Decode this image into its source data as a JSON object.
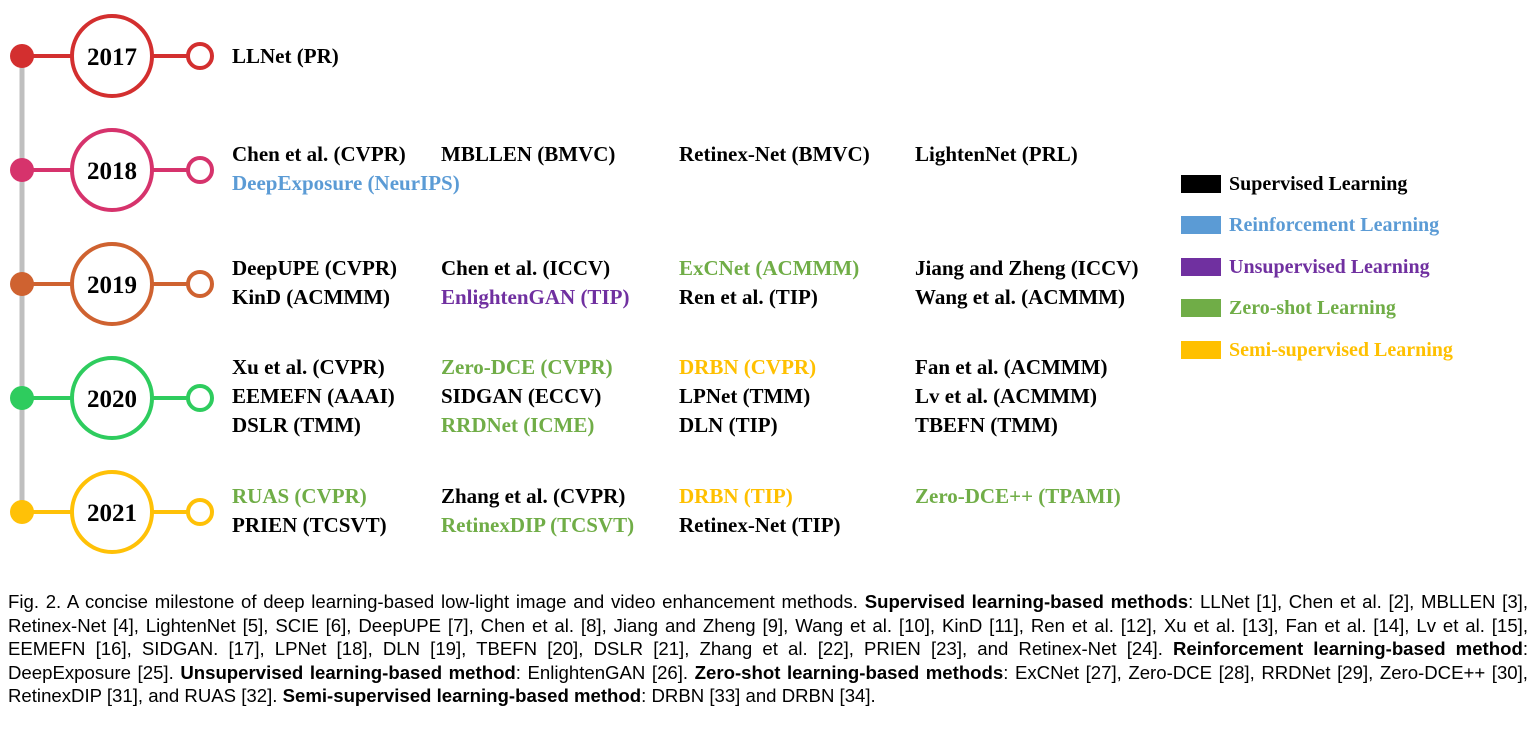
{
  "colors": {
    "supervised": "#000000",
    "reinforcement": "#5b9bd5",
    "unsupervised": "#7030a0",
    "zero_shot": "#70ad47",
    "semi_supervised": "#ffc000",
    "timeline_axis": "#bfbfbf"
  },
  "timeline": [
    {
      "year": "2017",
      "color": "#d32f2f",
      "methods": [
        {
          "text": "LLNet (PR)",
          "category": "supervised"
        }
      ]
    },
    {
      "year": "2018",
      "color": "#d6336c",
      "methods": [
        {
          "text": "Chen et al. (CVPR)",
          "category": "supervised"
        },
        {
          "text": "MBLLEN (BMVC)",
          "category": "supervised"
        },
        {
          "text": "Retinex-Net (BMVC)",
          "category": "supervised"
        },
        {
          "text": "LightenNet (PRL)",
          "category": "supervised"
        },
        {
          "text": "DeepExposure (NeurIPS)",
          "category": "reinforcement"
        }
      ]
    },
    {
      "year": "2019",
      "color": "#cf6230",
      "methods": [
        {
          "text": "DeepUPE (CVPR)",
          "category": "supervised"
        },
        {
          "text": "Chen et al. (ICCV)",
          "category": "supervised"
        },
        {
          "text": "ExCNet (ACMMM)",
          "category": "zero_shot"
        },
        {
          "text": "Jiang and Zheng (ICCV)",
          "category": "supervised"
        },
        {
          "text": "KinD (ACMMM)",
          "category": "supervised"
        },
        {
          "text": "EnlightenGAN (TIP)",
          "category": "unsupervised"
        },
        {
          "text": "Ren et al. (TIP)",
          "category": "supervised"
        },
        {
          "text": "Wang et al. (ACMMM)",
          "category": "supervised"
        }
      ]
    },
    {
      "year": "2020",
      "color": "#2ecc5e",
      "methods": [
        {
          "text": "Xu et al. (CVPR)",
          "category": "supervised"
        },
        {
          "text": "Zero-DCE (CVPR)",
          "category": "zero_shot"
        },
        {
          "text": "DRBN (CVPR)",
          "category": "semi_supervised"
        },
        {
          "text": "Fan et al. (ACMMM)",
          "category": "supervised"
        },
        {
          "text": "EEMEFN (AAAI)",
          "category": "supervised"
        },
        {
          "text": "SIDGAN (ECCV)",
          "category": "supervised"
        },
        {
          "text": "LPNet (TMM)",
          "category": "supervised"
        },
        {
          "text": "Lv et al. (ACMMM)",
          "category": "supervised"
        },
        {
          "text": "DSLR (TMM)",
          "category": "supervised"
        },
        {
          "text": "RRDNet (ICME)",
          "category": "zero_shot"
        },
        {
          "text": "DLN (TIP)",
          "category": "supervised"
        },
        {
          "text": "TBEFN (TMM)",
          "category": "supervised"
        }
      ]
    },
    {
      "year": "2021",
      "color": "#ffc107",
      "methods": [
        {
          "text": "RUAS (CVPR)",
          "category": "zero_shot"
        },
        {
          "text": "Zhang et al. (CVPR)",
          "category": "supervised"
        },
        {
          "text": "DRBN (TIP)",
          "category": "semi_supervised"
        },
        {
          "text": "Zero-DCE++ (TPAMI)",
          "category": "zero_shot"
        },
        {
          "text": "PRIEN (TCSVT)",
          "category": "supervised"
        },
        {
          "text": "RetinexDIP (TCSVT)",
          "category": "zero_shot"
        },
        {
          "text": "Retinex-Net (TIP)",
          "category": "supervised"
        }
      ]
    }
  ],
  "legend": [
    {
      "label": "Supervised Learning",
      "category": "supervised"
    },
    {
      "label": "Reinforcement Learning",
      "category": "reinforcement"
    },
    {
      "label": "Unsupervised Learning",
      "category": "unsupervised"
    },
    {
      "label": "Zero-shot Learning",
      "category": "zero_shot"
    },
    {
      "label": "Semi-supervised Learning",
      "category": "semi_supervised"
    }
  ],
  "caption": {
    "intro": "Fig. 2. A concise milestone of deep learning-based low-light image and video enhancement methods.",
    "supervised_heading": "Supervised learning-based methods",
    "supervised_text": ": LLNet [1], Chen et al. [2], MBLLEN [3], Retinex-Net [4], LightenNet [5], SCIE [6], DeepUPE [7], Chen et al. [8], Jiang and Zheng [9], Wang et al. [10], KinD [11], Ren et al. [12], Xu et al. [13], Fan et al. [14], Lv et al. [15], EEMEFN [16], SIDGAN. [17], LPNet [18], DLN [19], TBEFN [20], DSLR [21], Zhang et al. [22], PRIEN [23], and Retinex-Net [24].",
    "reinforcement_heading": "Reinforcement learning-based method",
    "reinforcement_text": ": DeepExposure [25].",
    "unsupervised_heading": "Unsupervised learning-based method",
    "unsupervised_text": ": EnlightenGAN [26].",
    "zero_shot_heading": "Zero-shot learning-based methods",
    "zero_shot_text": ": ExCNet [27], Zero-DCE [28], RRDNet [29], Zero-DCE++ [30], RetinexDIP [31], and RUAS [32].",
    "semi_heading": "Semi-supervised learning-based method",
    "semi_text": ": DRBN [33] and DRBN [34]."
  }
}
